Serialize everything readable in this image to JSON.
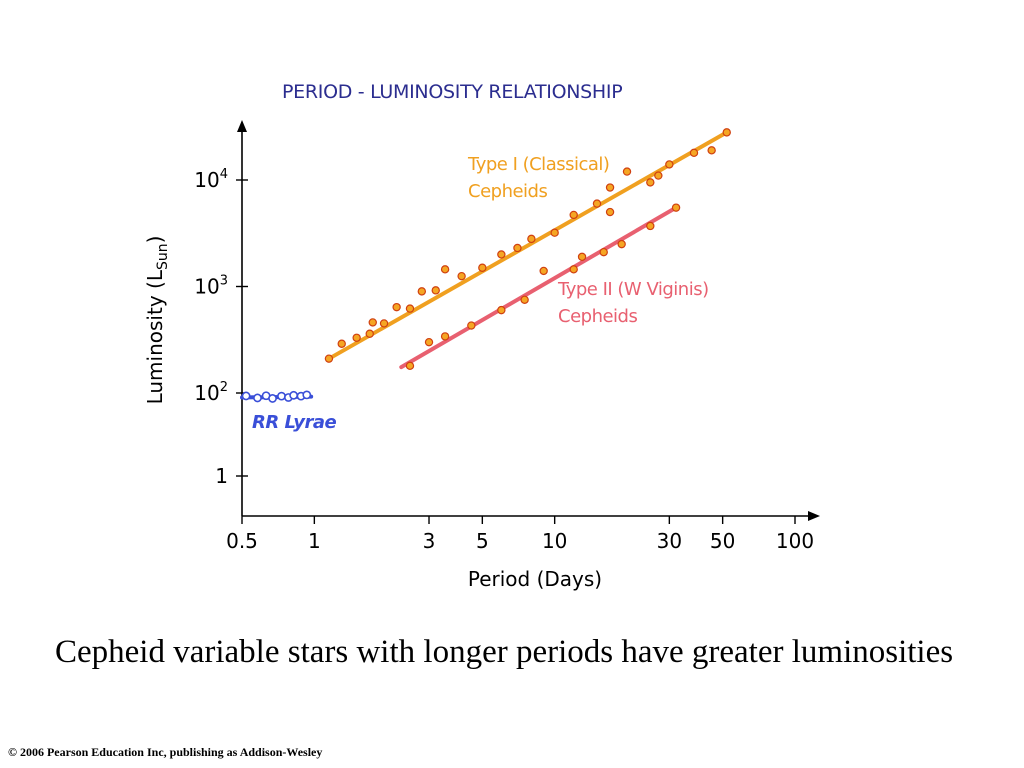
{
  "chart_data": {
    "type": "scatter",
    "title": "PERIOD - LUMINOSITY RELATIONSHIP",
    "xlabel": "Period (Days)",
    "ylabel_main": "Luminosity (L",
    "ylabel_sub": "Sun",
    "ylabel_end": ")",
    "x_scale": "log",
    "y_scale": "log",
    "xlim": [
      0.5,
      100
    ],
    "x_ticks": [
      {
        "value": 0.5,
        "label": "0.5"
      },
      {
        "value": 1,
        "label": "1"
      },
      {
        "value": 3,
        "label": "3"
      },
      {
        "value": 5,
        "label": "5"
      },
      {
        "value": 10,
        "label": "10"
      },
      {
        "value": 30,
        "label": "30"
      },
      {
        "value": 50,
        "label": "50"
      },
      {
        "value": 100,
        "label": "100"
      }
    ],
    "y_ticks": [
      {
        "value": 1,
        "label_base": "1",
        "label_exp": ""
      },
      {
        "value": 100,
        "label_base": "10",
        "label_exp": "2"
      },
      {
        "value": 1000,
        "label_base": "10",
        "label_exp": "3"
      },
      {
        "value": 10000,
        "label_base": "10",
        "label_exp": "4"
      }
    ],
    "series": [
      {
        "name_lines": [
          "Type I (Classical)",
          "Cepheids"
        ],
        "color": "#f0a020",
        "point_fill": "#f5a623",
        "point_stroke": "#d04010",
        "marker": "filled",
        "fit": [
          [
            1.15,
            210
          ],
          [
            52,
            28000
          ]
        ],
        "points": [
          [
            1.15,
            210
          ],
          [
            1.3,
            290
          ],
          [
            1.5,
            330
          ],
          [
            1.7,
            360
          ],
          [
            1.75,
            460
          ],
          [
            1.95,
            450
          ],
          [
            2.2,
            640
          ],
          [
            2.5,
            620
          ],
          [
            2.8,
            900
          ],
          [
            3.2,
            920
          ],
          [
            3.5,
            1450
          ],
          [
            4.1,
            1250
          ],
          [
            5.0,
            1500
          ],
          [
            6.0,
            2000
          ],
          [
            7.0,
            2300
          ],
          [
            8.0,
            2800
          ],
          [
            10,
            3200
          ],
          [
            12,
            4700
          ],
          [
            15,
            6000
          ],
          [
            17,
            5000
          ],
          [
            17,
            8500
          ],
          [
            20,
            12000
          ],
          [
            25,
            9500
          ],
          [
            27,
            11000
          ],
          [
            30,
            14000
          ],
          [
            38,
            18000
          ],
          [
            45,
            19000
          ],
          [
            52,
            28000
          ]
        ]
      },
      {
        "name_lines": [
          "Type II (W Viginis)",
          "Cepheids"
        ],
        "color": "#e86070",
        "point_fill": "#f5a623",
        "point_stroke": "#d04010",
        "marker": "filled",
        "fit": [
          [
            2.3,
            175
          ],
          [
            32,
            5500
          ]
        ],
        "points": [
          [
            2.5,
            180
          ],
          [
            3.0,
            300
          ],
          [
            3.5,
            340
          ],
          [
            4.5,
            430
          ],
          [
            6.0,
            600
          ],
          [
            7.5,
            750
          ],
          [
            9.0,
            1400
          ],
          [
            12,
            1450
          ],
          [
            13,
            1900
          ],
          [
            16,
            2100
          ],
          [
            19,
            2500
          ],
          [
            25,
            3700
          ],
          [
            32,
            5500
          ]
        ]
      },
      {
        "name_lines": [
          "RR Lyrae"
        ],
        "color": "#3a4fd8",
        "point_fill": "#ffffff",
        "point_stroke": "#3a4fd8",
        "marker": "open",
        "fit": [
          [
            0.5,
            78
          ],
          [
            0.97,
            82
          ]
        ],
        "points": [
          [
            0.52,
            85
          ],
          [
            0.58,
            76
          ],
          [
            0.63,
            86
          ],
          [
            0.67,
            74
          ],
          [
            0.73,
            84
          ],
          [
            0.78,
            78
          ],
          [
            0.82,
            88
          ],
          [
            0.88,
            84
          ],
          [
            0.93,
            90
          ]
        ]
      }
    ],
    "legend": "inline labels next to each series"
  },
  "caption": "Cepheid variable stars with longer periods have greater luminosities",
  "copyright": "© 2006 Pearson Education Inc, publishing as Addison-Wesley"
}
